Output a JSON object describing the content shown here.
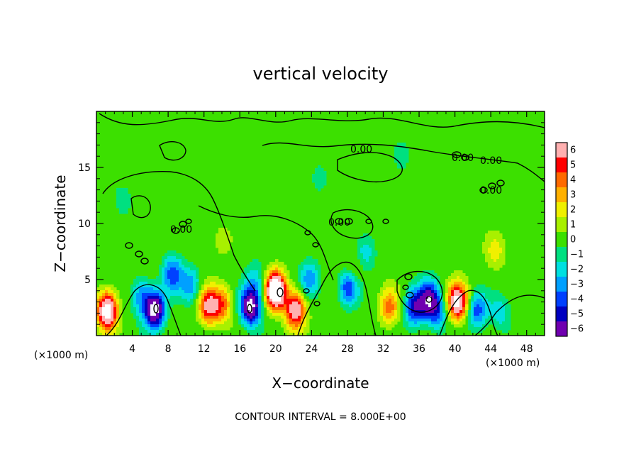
{
  "chart_data": {
    "type": "heatmap",
    "title": "vertical velocity",
    "xlabel": "X−coordinate",
    "ylabel": "Z−coordinate",
    "x_unit_left": "(×1000 m)",
    "x_unit_right": "(×1000 m)",
    "xlim": [
      0,
      50
    ],
    "ylim": [
      0,
      20
    ],
    "x_ticks": [
      4,
      8,
      12,
      16,
      20,
      24,
      28,
      32,
      36,
      40,
      44,
      48
    ],
    "y_ticks": [
      5,
      10,
      15
    ],
    "colorbar": {
      "range": [
        -6,
        6
      ],
      "labels": [
        "6",
        "5",
        "4",
        "3",
        "2",
        "1",
        "0",
        "−1",
        "−2",
        "−3",
        "−4",
        "−5",
        "−6"
      ],
      "colors": [
        "#ffb0b0",
        "#ff0000",
        "#ff6a00",
        "#ffb000",
        "#f0f000",
        "#a8f000",
        "#3ce000",
        "#00e080",
        "#00e0e0",
        "#00a0ff",
        "#0040ff",
        "#0000c0",
        "#7000b0"
      ]
    },
    "contour_labels": [
      "0.00",
      "0.00",
      "0.00",
      "0.00",
      "0.00",
      "0.00"
    ],
    "footnote": "CONTOUR INTERVAL = 8.000E+00",
    "features": [
      {
        "x": 1.2,
        "z": 2.2,
        "w": 9
      },
      {
        "x": 6.5,
        "z": 2.3,
        "w": -8
      },
      {
        "x": 5.0,
        "z": 3.5,
        "w": -3
      },
      {
        "x": 8.5,
        "z": 5.5,
        "w": -4
      },
      {
        "x": 10.5,
        "z": 4.5,
        "w": -3
      },
      {
        "x": 12.5,
        "z": 2.6,
        "w": 6
      },
      {
        "x": 14.0,
        "z": 2.8,
        "w": 4
      },
      {
        "x": 17.2,
        "z": 2.6,
        "w": -8
      },
      {
        "x": 17.8,
        "z": 5.0,
        "w": -2
      },
      {
        "x": 20.0,
        "z": 4.0,
        "w": 11
      },
      {
        "x": 22.2,
        "z": 2.3,
        "w": 7
      },
      {
        "x": 23.8,
        "z": 5.0,
        "w": -3
      },
      {
        "x": 28.2,
        "z": 4.5,
        "w": -6
      },
      {
        "x": 28.5,
        "z": 5.3,
        "w": 3
      },
      {
        "x": 30.0,
        "z": 7.5,
        "w": -2
      },
      {
        "x": 32.7,
        "z": 2.5,
        "w": 4
      },
      {
        "x": 35.5,
        "z": 2.5,
        "w": -5
      },
      {
        "x": 37.1,
        "z": 3.2,
        "w": -6
      },
      {
        "x": 38.0,
        "z": 2.0,
        "w": -3
      },
      {
        "x": 40.3,
        "z": 3.0,
        "w": 8
      },
      {
        "x": 42.5,
        "z": 2.2,
        "w": -4
      },
      {
        "x": 45.0,
        "z": 2.0,
        "w": -2
      },
      {
        "x": 44.5,
        "z": 7.5,
        "w": 2
      },
      {
        "x": 14.0,
        "z": 8.5,
        "w": 1
      },
      {
        "x": 3.0,
        "z": 12.0,
        "w": -1
      },
      {
        "x": 25.0,
        "z": 14.0,
        "w": -1
      },
      {
        "x": 34.0,
        "z": 16.0,
        "w": -1
      }
    ]
  }
}
